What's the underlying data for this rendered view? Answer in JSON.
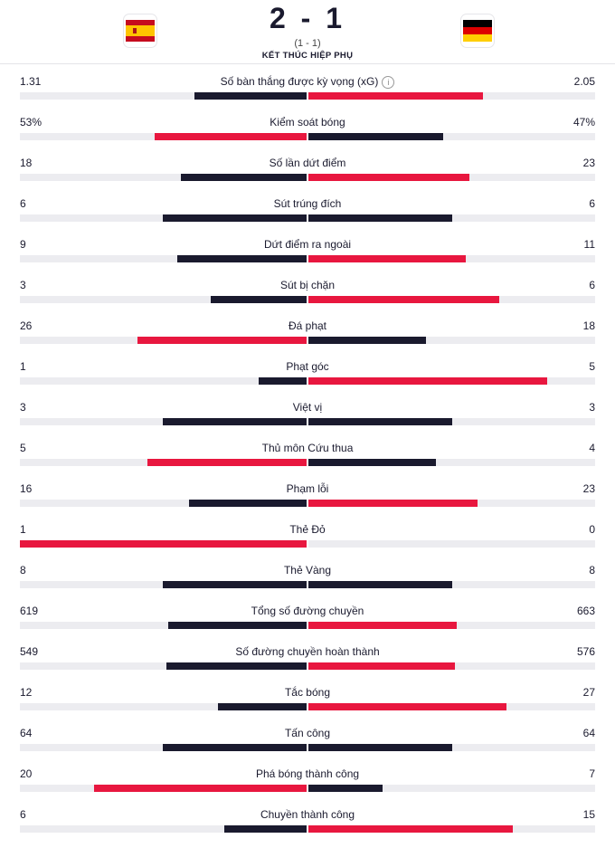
{
  "match": {
    "score": "2 - 1",
    "halftime": "(1 - 1)",
    "status": "KẾT THÚC HIỆP PHỤ",
    "home_flag_icon": "spain-flag-icon",
    "away_flag_icon": "germany-flag-icon"
  },
  "colors": {
    "dark": "#1a1a2e",
    "red": "#e8173f",
    "track": "#ececf0"
  },
  "stats": [
    {
      "label": "Số bàn thắng được kỳ vọng (xG)",
      "left": "1.31",
      "right": "2.05",
      "lnum": 1.31,
      "rnum": 2.05,
      "info": true
    },
    {
      "label": "Kiểm soát bóng",
      "left": "53%",
      "right": "47%",
      "lnum": 53,
      "rnum": 47
    },
    {
      "label": "Số lần dứt điểm",
      "left": "18",
      "right": "23",
      "lnum": 18,
      "rnum": 23
    },
    {
      "label": "Sút trúng đích",
      "left": "6",
      "right": "6",
      "lnum": 6,
      "rnum": 6
    },
    {
      "label": "Dứt điểm ra ngoài",
      "left": "9",
      "right": "11",
      "lnum": 9,
      "rnum": 11
    },
    {
      "label": "Sút bị chặn",
      "left": "3",
      "right": "6",
      "lnum": 3,
      "rnum": 6
    },
    {
      "label": "Đá phạt",
      "left": "26",
      "right": "18",
      "lnum": 26,
      "rnum": 18
    },
    {
      "label": "Phạt góc",
      "left": "1",
      "right": "5",
      "lnum": 1,
      "rnum": 5
    },
    {
      "label": "Việt vị",
      "left": "3",
      "right": "3",
      "lnum": 3,
      "rnum": 3
    },
    {
      "label": "Thủ môn Cứu thua",
      "left": "5",
      "right": "4",
      "lnum": 5,
      "rnum": 4
    },
    {
      "label": "Phạm lỗi",
      "left": "16",
      "right": "23",
      "lnum": 16,
      "rnum": 23
    },
    {
      "label": "Thẻ Đỏ",
      "left": "1",
      "right": "0",
      "lnum": 1,
      "rnum": 0
    },
    {
      "label": "Thẻ Vàng",
      "left": "8",
      "right": "8",
      "lnum": 8,
      "rnum": 8
    },
    {
      "label": "Tổng số đường chuyền",
      "left": "619",
      "right": "663",
      "lnum": 619,
      "rnum": 663
    },
    {
      "label": "Số đường chuyền hoàn thành",
      "left": "549",
      "right": "576",
      "lnum": 549,
      "rnum": 576
    },
    {
      "label": "Tắc bóng",
      "left": "12",
      "right": "27",
      "lnum": 12,
      "rnum": 27
    },
    {
      "label": "Tấn công",
      "left": "64",
      "right": "64",
      "lnum": 64,
      "rnum": 64
    },
    {
      "label": "Phá bóng thành công",
      "left": "20",
      "right": "7",
      "lnum": 20,
      "rnum": 7
    },
    {
      "label": "Chuyền thành công",
      "left": "6",
      "right": "15",
      "lnum": 6,
      "rnum": 15
    }
  ]
}
